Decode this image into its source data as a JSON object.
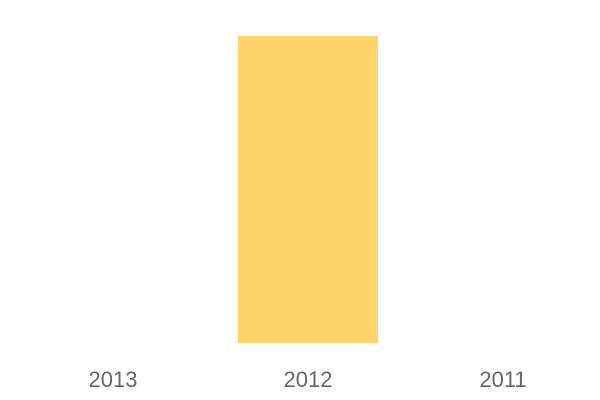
{
  "chart_data": {
    "type": "bar",
    "title": "",
    "xlabel": "",
    "ylabel": "",
    "categories": [
      "2013",
      "2012",
      "2011"
    ],
    "values": [
      0,
      1,
      0
    ],
    "ylim": [
      0,
      1
    ],
    "grid": false,
    "colors": {
      "bar": "#FFD56B",
      "tick_text": "#666666"
    }
  }
}
